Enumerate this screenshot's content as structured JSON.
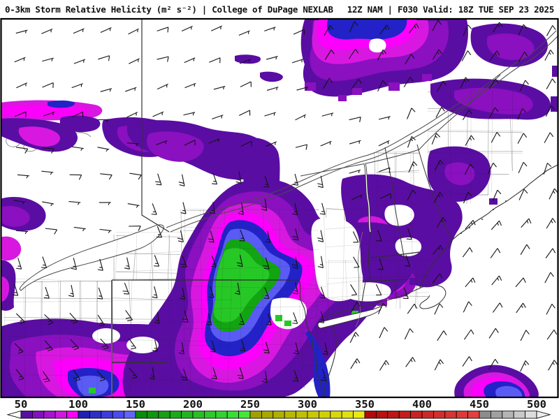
{
  "header": {
    "left_title": "0-3km Storm Relative Helicity (m² s⁻²) | College of DuPage NEXLAB",
    "right_title": "12Z NAM | F030 Valid: 18Z TUE SEP 23 2025"
  },
  "map": {
    "background": "#ffffff",
    "frame_color": "#000000",
    "county_line_color": "#a8a8a8",
    "state_line_color": "#2e2e2e",
    "water_line_color": "#4a4a4a",
    "wind_barb_color": "#141414",
    "fill_levels": [
      {
        "value": 50,
        "color": "#5a0da2"
      },
      {
        "value": 60,
        "color": "#8a10c0"
      },
      {
        "value": 80,
        "color": "#d818e0"
      },
      {
        "value": 90,
        "color": "#fb00fb"
      },
      {
        "value": 100,
        "color": "#2222c8"
      },
      {
        "value": 120,
        "color": "#5a5af5"
      },
      {
        "value": 150,
        "color": "#12a412"
      },
      {
        "value": 170,
        "color": "#26c826"
      }
    ],
    "wind_regions": [
      {
        "area": "ontario",
        "from_deg": 70,
        "speed_kt": 7
      },
      {
        "area": "quebec",
        "from_deg": 30,
        "speed_kt": 12
      },
      {
        "area": "west",
        "from_deg": 95,
        "speed_kt": 8
      },
      {
        "area": "northeast",
        "from_deg": 25,
        "speed_kt": 12
      },
      {
        "area": "gulf_of_maine",
        "from_deg": 35,
        "speed_kt": 10
      },
      {
        "area": "center",
        "from_deg": 165,
        "speed_kt": 15
      },
      {
        "area": "southwest_pa",
        "from_deg": 140,
        "speed_kt": 18
      },
      {
        "area": "coastal_ne",
        "from_deg": 155,
        "speed_kt": 12
      },
      {
        "area": "atlantic",
        "from_deg": 30,
        "speed_kt": 10
      }
    ]
  },
  "colorbar": {
    "min": 50,
    "max": 500,
    "step": 10,
    "tick_labels": [
      "50",
      "100",
      "150",
      "200",
      "250",
      "300",
      "350",
      "400",
      "450",
      "500"
    ],
    "segment_colors": [
      "#5a0da2",
      "#8211bc",
      "#a514d0",
      "#d018e0",
      "#fb00fb",
      "#1f1fb4",
      "#2d2dc8",
      "#3c3cdc",
      "#4b4bf0",
      "#6363fa",
      "#0a8c0a",
      "#10960f",
      "#16a015",
      "#1caa1a",
      "#22b420",
      "#28be25",
      "#2ec82b",
      "#34d230",
      "#3adc36",
      "#44e63c",
      "#a0a000",
      "#a8a800",
      "#b0b000",
      "#b8b800",
      "#c0c000",
      "#c8c804",
      "#d0d008",
      "#d8d80c",
      "#e0e010",
      "#e8e814",
      "#b40a0a",
      "#b91010",
      "#be1616",
      "#c31c1c",
      "#c82222",
      "#cd2828",
      "#d22e2e",
      "#d73434",
      "#dc3a3a",
      "#e14040",
      "#8c8c8c",
      "#a0a0a0",
      "#b4b4b4",
      "#c8c8c8",
      "#dcdcdc"
    ]
  }
}
